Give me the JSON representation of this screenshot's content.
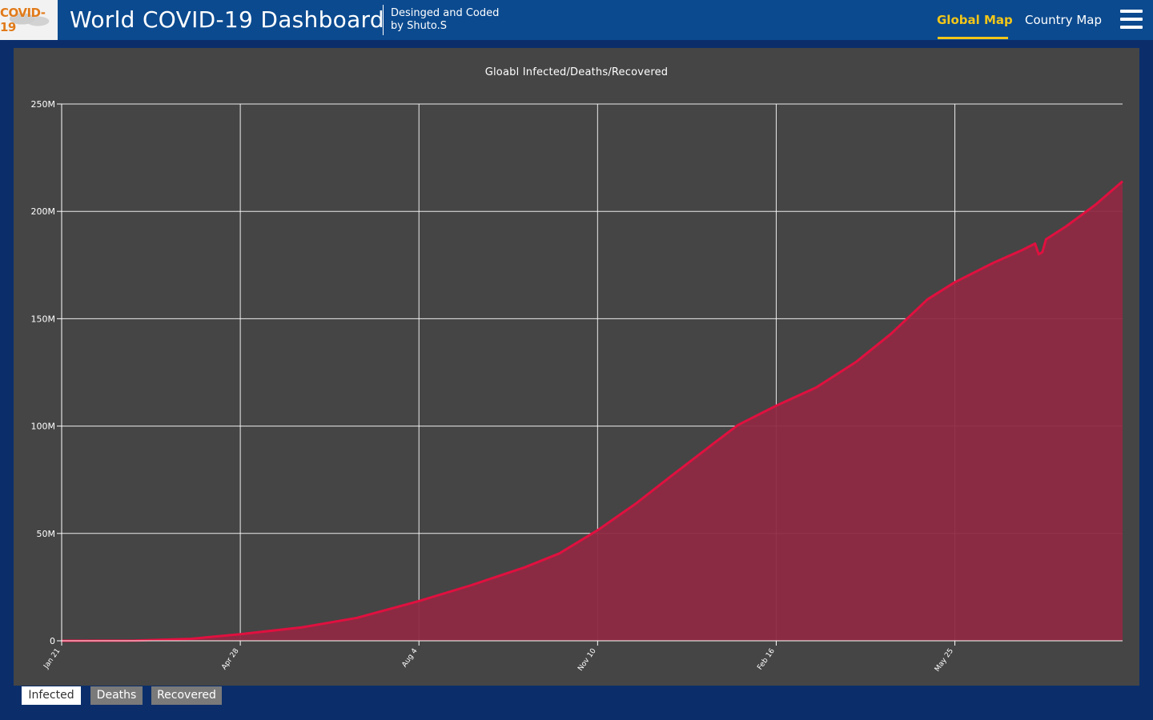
{
  "header": {
    "logo_text": "COVID-19",
    "title": "World COVID-19 Dashboard",
    "credit_line1": "Desinged and Coded",
    "credit_line2": "by Shuto.S",
    "nav": {
      "global_map": "Global Map",
      "country_map": "Country Map",
      "active": "global_map"
    }
  },
  "colors": {
    "header_bg": "#0b4a8f",
    "page_bg": "#0b2e6b",
    "panel_bg": "#454545",
    "accent": "#f2c619",
    "series_line": "#e0103f",
    "series_fill": "#8f2a43"
  },
  "chart_data": {
    "type": "area",
    "title": "Gloabl Infected/Deaths/Recovered",
    "xlabel": "",
    "ylabel": "",
    "grid": true,
    "y_ticks": [
      {
        "value": 0,
        "label": "0"
      },
      {
        "value": 50000000,
        "label": "50M"
      },
      {
        "value": 100000000,
        "label": "100M"
      },
      {
        "value": 150000000,
        "label": "150M"
      },
      {
        "value": 200000000,
        "label": "200M"
      },
      {
        "value": 250000000,
        "label": "250M"
      }
    ],
    "ylim": [
      0,
      250000000
    ],
    "x_ticks": [
      {
        "date": "2020-01-21",
        "label": "Jan 21"
      },
      {
        "date": "2020-04-28",
        "label": "Apr 28"
      },
      {
        "date": "2020-08-04",
        "label": "Aug 4"
      },
      {
        "date": "2020-11-10",
        "label": "Nov 10"
      },
      {
        "date": "2021-02-16",
        "label": "Feb 16"
      },
      {
        "date": "2021-05-25",
        "label": "May 25"
      }
    ],
    "xlim": [
      "2020-01-21",
      "2021-08-25"
    ],
    "series": [
      {
        "values": [
          {
            "date": "2020-01-21",
            "y": 0
          },
          {
            "date": "2020-03-01",
            "y": 88000
          },
          {
            "date": "2020-04-01",
            "y": 930000
          },
          {
            "date": "2020-04-28",
            "y": 3100000
          },
          {
            "date": "2020-06-01",
            "y": 6300000
          },
          {
            "date": "2020-07-01",
            "y": 10700000
          },
          {
            "date": "2020-08-04",
            "y": 18500000
          },
          {
            "date": "2020-09-01",
            "y": 25700000
          },
          {
            "date": "2020-10-01",
            "y": 34200000
          },
          {
            "date": "2020-10-20",
            "y": 40700000
          },
          {
            "date": "2020-11-10",
            "y": 51500000
          },
          {
            "date": "2020-12-01",
            "y": 63900000
          },
          {
            "date": "2020-12-20",
            "y": 76500000
          },
          {
            "date": "2021-01-10",
            "y": 90200000
          },
          {
            "date": "2021-01-26",
            "y": 100500000
          },
          {
            "date": "2021-02-16",
            "y": 109500000
          },
          {
            "date": "2021-03-10",
            "y": 118000000
          },
          {
            "date": "2021-04-01",
            "y": 130000000
          },
          {
            "date": "2021-04-20",
            "y": 143000000
          },
          {
            "date": "2021-05-10",
            "y": 159000000
          },
          {
            "date": "2021-05-25",
            "y": 167000000
          },
          {
            "date": "2021-06-15",
            "y": 176000000
          },
          {
            "date": "2021-07-01",
            "y": 182000000
          },
          {
            "date": "2021-07-08",
            "y": 185000000
          },
          {
            "date": "2021-07-10",
            "y": 180000000
          },
          {
            "date": "2021-07-12",
            "y": 181000000
          },
          {
            "date": "2021-07-14",
            "y": 187000000
          },
          {
            "date": "2021-07-25",
            "y": 193000000
          },
          {
            "date": "2021-08-10",
            "y": 203000000
          },
          {
            "date": "2021-08-25",
            "y": 214000000
          }
        ]
      }
    ]
  },
  "tabs": [
    {
      "label": "Infected",
      "active": true
    },
    {
      "label": "Deaths",
      "active": false
    },
    {
      "label": "Recovered",
      "active": false
    }
  ]
}
